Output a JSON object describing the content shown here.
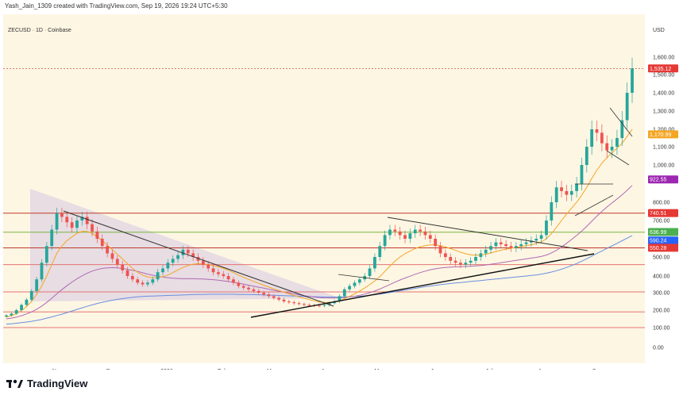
{
  "attribution": "Yash_Jain_1309 created with TradingView.com, Sep 19, 2026 19:24 UTC+5:30",
  "symbol": "ZECUSD · 1D · Coinbase",
  "currency": "USD",
  "brand": "TradingView",
  "colors": {
    "background": "#fdf6e3",
    "up": "#26a69a",
    "down": "#ef5350",
    "ma_fast": "#f5a623",
    "ma_mid": "#b06ab3",
    "ma_slow": "#6a8fe0",
    "resistance": "#c0392b",
    "support_green": "#4caf50",
    "trendline": "#111111"
  },
  "chart_data": {
    "type": "line",
    "yscale": "log",
    "ylim": [
      0,
      1700
    ],
    "y_ticks": [
      {
        "label": "1,600.00",
        "value": 1600
      },
      {
        "label": "1,500.00",
        "value": 1500
      },
      {
        "label": "1,400.00",
        "value": 1400
      },
      {
        "label": "1,300.00",
        "value": 1300
      },
      {
        "label": "1,200.00",
        "value": 1200
      },
      {
        "label": "1,100.00",
        "value": 1100
      },
      {
        "label": "1,000.00",
        "value": 1000
      },
      {
        "label": "800.00",
        "value": 800
      },
      {
        "label": "700.00",
        "value": 700
      },
      {
        "label": "500.00",
        "value": 500
      },
      {
        "label": "400.00",
        "value": 400
      },
      {
        "label": "300.00",
        "value": 300
      },
      {
        "label": "200.00",
        "value": 200
      },
      {
        "label": "100.00",
        "value": 100
      },
      {
        "label": "0.00",
        "value": 0
      }
    ],
    "x_ticks": [
      "Nov",
      "Dec",
      "2026",
      "Feb",
      "Mar",
      "Apr",
      "May",
      "Jun",
      "Jul",
      "Aug",
      "Sep"
    ],
    "price_tags": [
      {
        "label": "1,535.12",
        "value": 1535.12,
        "color": "#e53935"
      },
      {
        "label": "1,170.99",
        "value": 1170.99,
        "color": "#f5a623"
      },
      {
        "label": "922.55",
        "value": 922.55,
        "color": "#9c27b0"
      },
      {
        "label": "740.51",
        "value": 740.51,
        "color": "#e53935"
      },
      {
        "label": "636.99",
        "value": 636.99,
        "color": "#4caf50"
      },
      {
        "label": "590.24",
        "value": 590.24,
        "color": "#2962ff"
      },
      {
        "label": "550.28",
        "value": 550.28,
        "color": "#e53935"
      }
    ],
    "horizontal_levels": [
      {
        "value": 740,
        "color": "#c0392b"
      },
      {
        "value": 636,
        "color": "#7cb342"
      },
      {
        "value": 550,
        "color": "#c0392b"
      },
      {
        "value": 460,
        "color": "#e57373"
      },
      {
        "value": 305,
        "color": "#e57373"
      },
      {
        "value": 190,
        "color": "#e57373"
      },
      {
        "value": 100,
        "color": "#e57373"
      },
      {
        "value": 1535,
        "color": "#c0392b"
      }
    ],
    "close": [
      170,
      180,
      200,
      230,
      260,
      310,
      380,
      470,
      560,
      650,
      740,
      720,
      690,
      660,
      700,
      720,
      680,
      640,
      600,
      560,
      520,
      490,
      460,
      430,
      400,
      380,
      360,
      350,
      360,
      380,
      420,
      440,
      470,
      490,
      510,
      540,
      520,
      500,
      480,
      460,
      440,
      420,
      410,
      400,
      380,
      360,
      340,
      330,
      320,
      310,
      300,
      290,
      280,
      270,
      260,
      250,
      245,
      240,
      235,
      230,
      228,
      226,
      225,
      230,
      240,
      250,
      280,
      320,
      340,
      360,
      380,
      400,
      440,
      500,
      560,
      620,
      650,
      640,
      620,
      600,
      630,
      650,
      640,
      620,
      600,
      560,
      520,
      500,
      480,
      470,
      460,
      470,
      480,
      500,
      520,
      540,
      560,
      580,
      570,
      560,
      550,
      560,
      570,
      580,
      590,
      600,
      620,
      700,
      800,
      880,
      860,
      840,
      860,
      900,
      1000,
      1100,
      1200,
      1180,
      1120,
      1080,
      1100,
      1150,
      1250,
      1400,
      1535
    ],
    "sma_fast": [
      160,
      168,
      180,
      198,
      220,
      250,
      290,
      340,
      400,
      460,
      520,
      560,
      590,
      610,
      630,
      640,
      640,
      630,
      610,
      590,
      565,
      540,
      515,
      490,
      465,
      440,
      420,
      405,
      395,
      390,
      392,
      396,
      405,
      418,
      432,
      445,
      455,
      462,
      465,
      464,
      460,
      455,
      448,
      440,
      430,
      418,
      405,
      392,
      380,
      368,
      356,
      345,
      334,
      323,
      313,
      303,
      293,
      284,
      276,
      268,
      260,
      253,
      247,
      244,
      244,
      247,
      254,
      265,
      278,
      293,
      310,
      328,
      348,
      371,
      396,
      424,
      452,
      478,
      500,
      518,
      533,
      546,
      556,
      562,
      566,
      566,
      562,
      555,
      546,
      536,
      526,
      518,
      512,
      510,
      511,
      515,
      522,
      530,
      537,
      543,
      548,
      553,
      557,
      562,
      567,
      573,
      582,
      600,
      628,
      663,
      700,
      735,
      768,
      800,
      838,
      880,
      928,
      972,
      1010,
      1040,
      1066,
      1092,
      1120,
      1158,
      1200
    ],
    "sma_mid": [
      150,
      154,
      160,
      168,
      178,
      190,
      205,
      223,
      244,
      268,
      293,
      318,
      342,
      364,
      384,
      401,
      415,
      426,
      434,
      440,
      443,
      444,
      443,
      440,
      435,
      430,
      424,
      417,
      410,
      404,
      399,
      394,
      390,
      387,
      385,
      384,
      384,
      384,
      383,
      382,
      380,
      378,
      375,
      371,
      367,
      362,
      357,
      351,
      345,
      339,
      333,
      327,
      321,
      315,
      309,
      303,
      298,
      293,
      288,
      283,
      279,
      275,
      272,
      270,
      269,
      269,
      270,
      272,
      275,
      279,
      285,
      292,
      300,
      310,
      322,
      335,
      349,
      363,
      376,
      388,
      399,
      409,
      418,
      426,
      433,
      438,
      442,
      445,
      447,
      448,
      449,
      450,
      451,
      453,
      455,
      458,
      462,
      466,
      470,
      474,
      478,
      482,
      486,
      490,
      494,
      498,
      503,
      511,
      522,
      537,
      555,
      575,
      596,
      618,
      642,
      668,
      696,
      724,
      750,
      774,
      796,
      818,
      840,
      864,
      890
    ],
    "sma_slow": [
      120,
      122,
      125,
      128,
      132,
      136,
      141,
      147,
      154,
      161,
      169,
      177,
      186,
      195,
      204,
      213,
      222,
      230,
      238,
      245,
      251,
      257,
      262,
      266,
      270,
      273,
      276,
      278,
      280,
      281,
      282,
      283,
      284,
      285,
      286,
      287,
      288,
      289,
      290,
      290,
      291,
      291,
      291,
      291,
      291,
      291,
      290,
      290,
      289,
      289,
      288,
      287,
      286,
      285,
      284,
      283,
      282,
      281,
      280,
      279,
      278,
      277,
      276,
      275,
      275,
      275,
      275,
      276,
      277,
      278,
      280,
      282,
      285,
      288,
      292,
      296,
      301,
      306,
      311,
      316,
      321,
      326,
      331,
      336,
      340,
      344,
      348,
      352,
      355,
      358,
      361,
      364,
      367,
      370,
      373,
      376,
      379,
      382,
      385,
      388,
      391,
      394,
      397,
      400,
      403,
      406,
      410,
      415,
      421,
      428,
      436,
      445,
      455,
      466,
      478,
      491,
      505,
      519,
      533,
      547,
      561,
      575,
      589,
      603,
      618
    ]
  }
}
